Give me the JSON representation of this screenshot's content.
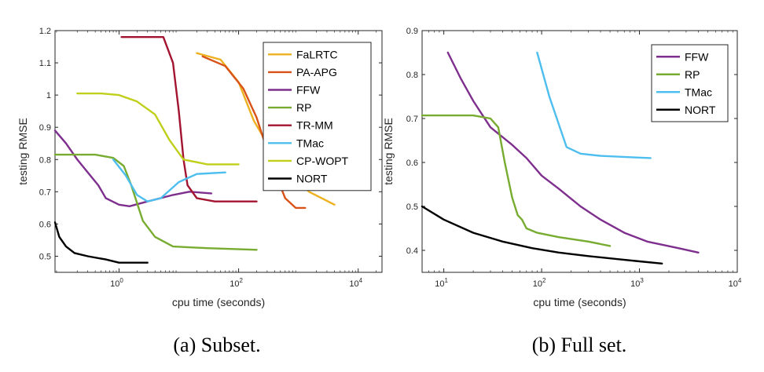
{
  "chart_data": [
    {
      "type": "line",
      "caption": "(a) Subset.",
      "xlabel": "cpu time (seconds)",
      "ylabel": "testing RMSE",
      "xscale": "log",
      "xlim": [
        0.085,
        25000
      ],
      "ylim": [
        0.45,
        1.2
      ],
      "yticks": [
        0.5,
        0.6,
        0.7,
        0.8,
        0.9,
        1,
        1.1,
        1.2
      ],
      "ytick_labels": [
        "0.5",
        "0.6",
        "0.7",
        "0.8",
        "0.9",
        "1",
        "1.1",
        "1.2"
      ],
      "xticks": [
        {
          "value": 1,
          "base": "10",
          "exp": "0"
        },
        {
          "value": 100,
          "base": "10",
          "exp": "2"
        },
        {
          "value": 10000,
          "base": "10",
          "exp": "4"
        }
      ],
      "legend_position": "top-right",
      "series": [
        {
          "name": "FaLRTC",
          "color": "#edb120",
          "points": [
            [
              20,
              1.13
            ],
            [
              50,
              1.11
            ],
            [
              100,
              1.04
            ],
            [
              180,
              0.92
            ],
            [
              300,
              0.85
            ],
            [
              600,
              0.77
            ],
            [
              1500,
              0.7
            ],
            [
              4000,
              0.66
            ]
          ]
        },
        {
          "name": "PA-APG",
          "color": "#d95319",
          "points": [
            [
              25,
              1.12
            ],
            [
              60,
              1.09
            ],
            [
              120,
              1.02
            ],
            [
              200,
              0.93
            ],
            [
              350,
              0.79
            ],
            [
              600,
              0.68
            ],
            [
              900,
              0.65
            ],
            [
              1300,
              0.65
            ]
          ]
        },
        {
          "name": "FFW",
          "color": "#7e2f8e",
          "points": [
            [
              0.085,
              0.89
            ],
            [
              0.13,
              0.85
            ],
            [
              0.2,
              0.8
            ],
            [
              0.3,
              0.76
            ],
            [
              0.45,
              0.72
            ],
            [
              0.6,
              0.68
            ],
            [
              1,
              0.66
            ],
            [
              1.5,
              0.655
            ],
            [
              3,
              0.67
            ],
            [
              8,
              0.69
            ],
            [
              15,
              0.7
            ],
            [
              35,
              0.695
            ]
          ]
        },
        {
          "name": "RP",
          "color": "#77ac30",
          "points": [
            [
              0.085,
              0.815
            ],
            [
              0.4,
              0.815
            ],
            [
              0.8,
              0.805
            ],
            [
              1.2,
              0.78
            ],
            [
              1.6,
              0.72
            ],
            [
              2.5,
              0.61
            ],
            [
              4,
              0.56
            ],
            [
              8,
              0.53
            ],
            [
              30,
              0.525
            ],
            [
              200,
              0.52
            ]
          ]
        },
        {
          "name": "TR-MM",
          "color": "#a2142f",
          "points": [
            [
              1.1,
              1.18
            ],
            [
              5.5,
              1.18
            ],
            [
              8,
              1.1
            ],
            [
              10,
              0.95
            ],
            [
              12,
              0.8
            ],
            [
              14,
              0.72
            ],
            [
              20,
              0.68
            ],
            [
              40,
              0.67
            ],
            [
              200,
              0.67
            ]
          ]
        },
        {
          "name": "TMac",
          "color": "#4dbeee",
          "points": [
            [
              0.8,
              0.8
            ],
            [
              1.3,
              0.75
            ],
            [
              2,
              0.69
            ],
            [
              3,
              0.67
            ],
            [
              5,
              0.68
            ],
            [
              10,
              0.73
            ],
            [
              20,
              0.755
            ],
            [
              60,
              0.76
            ]
          ]
        },
        {
          "name": "CP-WOPT",
          "color": "#bfcf1a",
          "points": [
            [
              0.2,
              1.005
            ],
            [
              0.5,
              1.005
            ],
            [
              1,
              1.0
            ],
            [
              2,
              0.98
            ],
            [
              4,
              0.94
            ],
            [
              7,
              0.86
            ],
            [
              12,
              0.8
            ],
            [
              30,
              0.785
            ],
            [
              100,
              0.785
            ]
          ]
        },
        {
          "name": "NORT",
          "color": "#000000",
          "points": [
            [
              0.085,
              0.605
            ],
            [
              0.1,
              0.56
            ],
            [
              0.13,
              0.53
            ],
            [
              0.18,
              0.51
            ],
            [
              0.3,
              0.5
            ],
            [
              0.6,
              0.49
            ],
            [
              1,
              0.48
            ],
            [
              2,
              0.48
            ],
            [
              3,
              0.48
            ]
          ]
        }
      ]
    },
    {
      "type": "line",
      "caption": "(b) Full set.",
      "xlabel": "cpu time (seconds)",
      "ylabel": "testing RMSE",
      "xscale": "log",
      "xlim": [
        6,
        10000
      ],
      "ylim": [
        0.35,
        0.9
      ],
      "yticks": [
        0.4,
        0.5,
        0.6,
        0.7,
        0.8,
        0.9
      ],
      "ytick_labels": [
        "0.4",
        "0.5",
        "0.6",
        "0.7",
        "0.8",
        "0.9"
      ],
      "xticks": [
        {
          "value": 10,
          "base": "10",
          "exp": "1"
        },
        {
          "value": 100,
          "base": "10",
          "exp": "2"
        },
        {
          "value": 1000,
          "base": "10",
          "exp": "3"
        },
        {
          "value": 10000,
          "base": "10",
          "exp": "4"
        }
      ],
      "legend_position": "top-right",
      "series": [
        {
          "name": "FFW",
          "color": "#7e2f8e",
          "points": [
            [
              11,
              0.85
            ],
            [
              15,
              0.79
            ],
            [
              20,
              0.74
            ],
            [
              30,
              0.68
            ],
            [
              50,
              0.64
            ],
            [
              70,
              0.61
            ],
            [
              100,
              0.57
            ],
            [
              150,
              0.54
            ],
            [
              250,
              0.5
            ],
            [
              400,
              0.47
            ],
            [
              700,
              0.44
            ],
            [
              1200,
              0.42
            ],
            [
              2500,
              0.405
            ],
            [
              4000,
              0.395
            ]
          ]
        },
        {
          "name": "RP",
          "color": "#77ac30",
          "points": [
            [
              6,
              0.707
            ],
            [
              20,
              0.707
            ],
            [
              30,
              0.7
            ],
            [
              36,
              0.68
            ],
            [
              42,
              0.6
            ],
            [
              50,
              0.52
            ],
            [
              57,
              0.48
            ],
            [
              63,
              0.47
            ],
            [
              70,
              0.45
            ],
            [
              90,
              0.44
            ],
            [
              150,
              0.43
            ],
            [
              300,
              0.42
            ],
            [
              500,
              0.41
            ]
          ]
        },
        {
          "name": "TMac",
          "color": "#4dbeee",
          "points": [
            [
              90,
              0.85
            ],
            [
              120,
              0.75
            ],
            [
              180,
              0.635
            ],
            [
              250,
              0.62
            ],
            [
              400,
              0.615
            ],
            [
              800,
              0.612
            ],
            [
              1300,
              0.61
            ]
          ]
        },
        {
          "name": "NORT",
          "color": "#000000",
          "points": [
            [
              6,
              0.5
            ],
            [
              10,
              0.47
            ],
            [
              20,
              0.44
            ],
            [
              40,
              0.42
            ],
            [
              80,
              0.405
            ],
            [
              150,
              0.395
            ],
            [
              300,
              0.387
            ],
            [
              600,
              0.38
            ],
            [
              1000,
              0.375
            ],
            [
              1700,
              0.37
            ]
          ]
        }
      ]
    }
  ]
}
